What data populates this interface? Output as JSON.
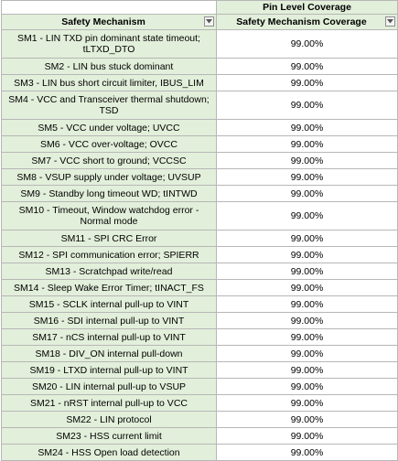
{
  "sheet": {
    "group_header": "Pin Level Coverage",
    "columns": [
      {
        "label": "Safety Mechanism",
        "filter_icon": "dropdown-arrow-icon"
      },
      {
        "label": "Safety Mechanism Coverage",
        "filter_icon": "dropdown-arrow-icon"
      }
    ],
    "rows": [
      {
        "mechanism": "SM1 - LIN TXD pin dominant state timeout; tLTXD_DTO",
        "coverage": "99.00%"
      },
      {
        "mechanism": "SM2 - LIN bus stuck dominant",
        "coverage": "99.00%"
      },
      {
        "mechanism": "SM3 - LIN bus short circuit limiter, IBUS_LIM",
        "coverage": "99.00%"
      },
      {
        "mechanism": "SM4 - VCC and Transceiver thermal shutdown; TSD",
        "coverage": "99.00%"
      },
      {
        "mechanism": "SM5 - VCC under voltage; UVCC",
        "coverage": "99.00%"
      },
      {
        "mechanism": "SM6 - VCC over-voltage; OVCC",
        "coverage": "99.00%"
      },
      {
        "mechanism": "SM7 - VCC short to ground; VCCSC",
        "coverage": "99.00%"
      },
      {
        "mechanism": "SM8 - VSUP supply under voltage; UVSUP",
        "coverage": "99.00%"
      },
      {
        "mechanism": "SM9 - Standby long timeout  WD; tINTWD",
        "coverage": "99.00%"
      },
      {
        "mechanism": "SM10 - Timeout, Window  watchdog error - Normal mode",
        "coverage": "99.00%"
      },
      {
        "mechanism": "SM11 - SPI CRC Error",
        "coverage": "99.00%"
      },
      {
        "mechanism": "SM12 - SPI communication error; SPIERR",
        "coverage": "99.00%"
      },
      {
        "mechanism": "SM13 - Scratchpad write/read",
        "coverage": "99.00%"
      },
      {
        "mechanism": "SM14 - Sleep Wake Error Timer; tINACT_FS",
        "coverage": "99.00%"
      },
      {
        "mechanism": "SM15 - SCLK internal pull-up to VINT",
        "coverage": "99.00%"
      },
      {
        "mechanism": "SM16 - SDI internal pull-up to VINT",
        "coverage": "99.00%"
      },
      {
        "mechanism": "SM17 - nCS internal pull-up to VINT",
        "coverage": "99.00%"
      },
      {
        "mechanism": "SM18 - DIV_ON internal pull-down",
        "coverage": "99.00%"
      },
      {
        "mechanism": "SM19 - LTXD internal pull-up to VINT",
        "coverage": "99.00%"
      },
      {
        "mechanism": "SM20 - LIN internal pull-up to VSUP",
        "coverage": "99.00%"
      },
      {
        "mechanism": "SM21 - nRST internal pull-up to VCC",
        "coverage": "99.00%"
      },
      {
        "mechanism": "SM22 - LIN protocol",
        "coverage": "99.00%"
      },
      {
        "mechanism": "SM23 - HSS current limit",
        "coverage": "99.00%"
      },
      {
        "mechanism": "SM24 - HSS Open load detection",
        "coverage": "99.00%"
      }
    ]
  }
}
